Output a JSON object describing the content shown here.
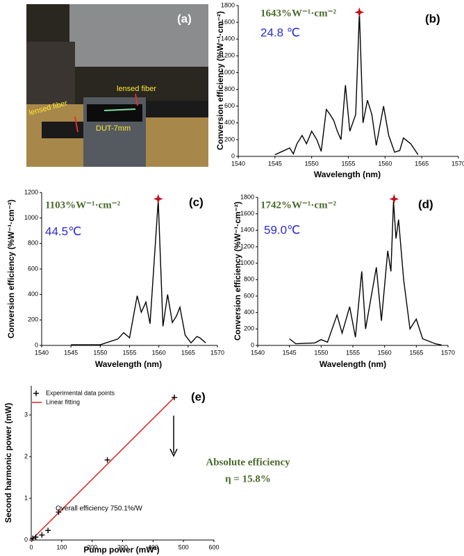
{
  "photo": {
    "panel": "(a)",
    "labels": [
      "lensed fiber",
      "lensed fiber",
      "DUT-7mm"
    ]
  },
  "chart_data": [
    {
      "type": "line",
      "panel": "(b)",
      "annotation": "1643%W⁻¹·cm⁻²",
      "temperature": "24.8 ℃",
      "xlabel": "Wavelength (nm)",
      "ylabel": "Conversion efficiency (%W⁻¹·cm⁻²)",
      "xlim": [
        1540,
        1570
      ],
      "xticks": [
        1540,
        1545,
        1550,
        1555,
        1560,
        1565,
        1570
      ],
      "ylim": [
        0,
        1800
      ],
      "yticks": [
        0,
        200,
        400,
        600,
        800,
        1000,
        1200,
        1400,
        1600,
        1800
      ],
      "series": [
        {
          "color": "#000000",
          "x": [
            1545,
            1546,
            1547,
            1547.5,
            1548,
            1548.7,
            1549.3,
            1550,
            1550.7,
            1551.3,
            1552,
            1552.5,
            1553,
            1553.5,
            1554,
            1554.6,
            1555.2,
            1556,
            1556.5,
            1557,
            1557.6,
            1558.2,
            1558.8,
            1559.8,
            1560.5,
            1561.3,
            1562,
            1562.5,
            1563.5,
            1564.5
          ],
          "values": [
            20,
            60,
            100,
            30,
            150,
            250,
            150,
            300,
            200,
            60,
            560,
            500,
            430,
            300,
            200,
            850,
            300,
            500,
            1720,
            400,
            670,
            500,
            130,
            600,
            250,
            50,
            70,
            220,
            150,
            20
          ]
        }
      ],
      "peak_marker": {
        "x": 1556.5,
        "y": 1720,
        "color": "#c0101a"
      }
    },
    {
      "type": "line",
      "panel": "(c)",
      "annotation": "1103%W⁻¹·cm⁻²",
      "temperature": "44.5℃",
      "xlabel": "Wavelength (nm)",
      "ylabel": "Conversion efficiency (%W⁻¹·cm⁻²)",
      "xlim": [
        1540,
        1570
      ],
      "xticks": [
        1540,
        1545,
        1550,
        1555,
        1560,
        1565,
        1570
      ],
      "ylim": [
        0,
        1200
      ],
      "yticks": [
        0,
        200,
        400,
        600,
        800,
        1000,
        1200
      ],
      "series": [
        {
          "color": "#000000",
          "x": [
            1545,
            1550,
            1553,
            1554,
            1555,
            1556.3,
            1557,
            1557.8,
            1558.5,
            1559.9,
            1560.7,
            1561.5,
            1562.3,
            1563,
            1563.6,
            1564.5,
            1565.5,
            1566.5,
            1567,
            1568
          ],
          "values": [
            5,
            5,
            50,
            100,
            60,
            390,
            260,
            340,
            170,
            1140,
            150,
            400,
            180,
            230,
            300,
            80,
            20,
            70,
            60,
            20
          ]
        }
      ],
      "peak_marker": {
        "x": 1559.9,
        "y": 1150,
        "color": "#c0101a"
      }
    },
    {
      "type": "line",
      "panel": "(d)",
      "annotation": "1742%W⁻¹·cm⁻²",
      "temperature": "59.0℃",
      "xlabel": "Wavelength (nm)",
      "ylabel": "Conversion efficiency (%W⁻¹·cm⁻²)",
      "xlim": [
        1540,
        1570
      ],
      "xticks": [
        1540,
        1545,
        1550,
        1555,
        1560,
        1565,
        1570
      ],
      "ylim": [
        0,
        1800
      ],
      "yticks": [
        0,
        200,
        400,
        600,
        800,
        1000,
        1200,
        1400,
        1600,
        1800
      ],
      "series": [
        {
          "color": "#000000",
          "x": [
            1545,
            1546,
            1549,
            1550,
            1551,
            1552.5,
            1553.3,
            1554.5,
            1555.4,
            1556.4,
            1557,
            1558.7,
            1559.5,
            1560.5,
            1561,
            1561.4,
            1561.8,
            1562.2,
            1563,
            1564,
            1565,
            1566,
            1568,
            1569
          ],
          "values": [
            80,
            20,
            30,
            70,
            40,
            370,
            150,
            470,
            100,
            900,
            200,
            950,
            300,
            1150,
            900,
            1750,
            1300,
            1530,
            800,
            200,
            320,
            80,
            20,
            5
          ]
        }
      ],
      "peak_marker": {
        "x": 1561.5,
        "y": 1780,
        "color": "#c0101a"
      }
    },
    {
      "type": "scatter_fit",
      "panel": "(e)",
      "annotations": [
        "Absolute efficiency",
        "η = 15.8%",
        "Overall efficiency 750.1%/W"
      ],
      "xlabel": "Pump power (mW²)",
      "ylabel": "Second harmonic power (mW)",
      "xlim": [
        0,
        600
      ],
      "xticks": [
        0,
        100,
        200,
        300,
        400,
        500,
        600
      ],
      "ylim": [
        0,
        3.7
      ],
      "yticks": [
        0,
        1,
        2,
        3
      ],
      "series": [
        {
          "name": "Experimental data points",
          "color": "#000000",
          "x": [
            5,
            15,
            35,
            55,
            90,
            250,
            470
          ],
          "values": [
            0.04,
            0.07,
            0.12,
            0.23,
            0.67,
            1.92,
            3.42
          ]
        },
        {
          "name": "Linear fitting",
          "color": "#e02020",
          "x": [
            0,
            470
          ],
          "values": [
            0,
            3.42
          ]
        }
      ]
    }
  ]
}
